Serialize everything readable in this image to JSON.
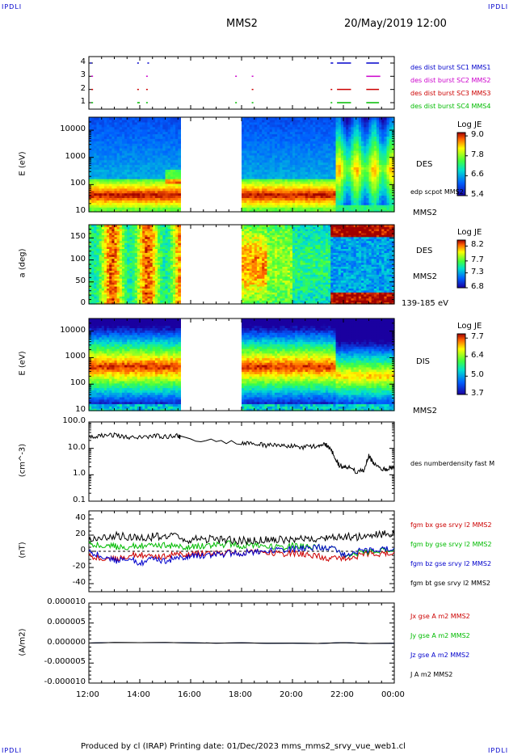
{
  "corner_tag": "IPDLI",
  "header": {
    "spacecraft": "MMS2",
    "datetime": "20/May/2019 12:00"
  },
  "footer": {
    "text": "Produced by cl (IRAP)    Printing date: 01/Dec/2023    mms_mms2_srvy_vue_web1.cl"
  },
  "chart_data": [
    {
      "type": "timeline",
      "name": "burst-availability",
      "yticks": [
        "1",
        "2",
        "3",
        "4"
      ],
      "legend": [
        {
          "label": "des dist burst SC1 MMS1",
          "color": "#0000cc"
        },
        {
          "label": "des dist burst SC2 MMS2",
          "color": "#cc00cc"
        },
        {
          "label": "des dist burst SC3 MMS3",
          "color": "#cc0000"
        },
        {
          "label": "des dist burst SC4 MMS4",
          "color": "#00bb00"
        }
      ],
      "segments": [
        {
          "level": 4,
          "start": 12.05,
          "end": 12.1
        },
        {
          "level": 4,
          "start": 13.9,
          "end": 13.95
        },
        {
          "level": 4,
          "start": 14.3,
          "end": 14.35
        },
        {
          "level": 4,
          "start": 21.5,
          "end": 21.6
        },
        {
          "level": 4,
          "start": 21.75,
          "end": 22.3
        },
        {
          "level": 4,
          "start": 22.9,
          "end": 23.4
        },
        {
          "level": 3,
          "start": 12.1,
          "end": 12.15
        },
        {
          "level": 3,
          "start": 14.25,
          "end": 14.3
        },
        {
          "level": 3,
          "start": 17.75,
          "end": 17.8
        },
        {
          "level": 3,
          "start": 18.4,
          "end": 18.45
        },
        {
          "level": 3,
          "start": 22.9,
          "end": 23.45
        },
        {
          "level": 2,
          "start": 12.1,
          "end": 12.15
        },
        {
          "level": 2,
          "start": 13.9,
          "end": 13.95
        },
        {
          "level": 2,
          "start": 14.25,
          "end": 14.3
        },
        {
          "level": 2,
          "start": 18.4,
          "end": 18.45
        },
        {
          "level": 2,
          "start": 21.5,
          "end": 21.55
        },
        {
          "level": 2,
          "start": 21.75,
          "end": 22.3
        },
        {
          "level": 2,
          "start": 22.9,
          "end": 23.4
        },
        {
          "level": 1,
          "start": 12.1,
          "end": 12.15
        },
        {
          "level": 1,
          "start": 13.9,
          "end": 14.0
        },
        {
          "level": 1,
          "start": 14.25,
          "end": 14.3
        },
        {
          "level": 1,
          "start": 17.75,
          "end": 17.8
        },
        {
          "level": 1,
          "start": 18.4,
          "end": 18.45
        },
        {
          "level": 1,
          "start": 21.5,
          "end": 21.55
        },
        {
          "level": 1,
          "start": 21.75,
          "end": 22.3
        },
        {
          "level": 1,
          "start": 22.9,
          "end": 23.4
        }
      ]
    },
    {
      "type": "heatmap",
      "name": "des-energy-spectrogram",
      "ylabel": "E (eV)",
      "yscale": "log",
      "ylim": [
        10,
        30000
      ],
      "yticks": [
        "10",
        "100",
        "1000",
        "10000"
      ],
      "side_labels": [
        "DES",
        "edp scpot MMS2",
        "MMS2"
      ],
      "colorbar": {
        "title": "Log JE",
        "ticks": [
          "9.0",
          "7.8",
          "6.6",
          "5.4"
        ],
        "range": [
          5.4,
          9.2
        ]
      },
      "data_gap": [
        15.6,
        18.0
      ]
    },
    {
      "type": "heatmap",
      "name": "des-pitch-angle",
      "ylabel": "a (deg)",
      "ylim": [
        0,
        180
      ],
      "yticks": [
        "0",
        "50",
        "100",
        "150"
      ],
      "side_labels": [
        "DES",
        "MMS2",
        "139-185 eV"
      ],
      "colorbar": {
        "title": "Log JE",
        "ticks": [
          "8.2",
          "7.7",
          "7.3",
          "6.8"
        ],
        "range": [
          6.8,
          8.4
        ]
      },
      "data_gap": [
        15.6,
        18.0
      ]
    },
    {
      "type": "heatmap",
      "name": "dis-energy-spectrogram",
      "ylabel": "E (eV)",
      "yscale": "log",
      "ylim": [
        10,
        30000
      ],
      "yticks": [
        "10",
        "100",
        "1000",
        "10000"
      ],
      "side_labels": [
        "DIS",
        "MMS2"
      ],
      "colorbar": {
        "title": "Log JE",
        "ticks": [
          "7.7",
          "6.4",
          "5.0",
          "3.7"
        ],
        "range": [
          3.7,
          8.0
        ]
      },
      "data_gap": [
        15.6,
        18.0
      ]
    },
    {
      "type": "line",
      "name": "density",
      "ylabel": "(cm^-3)",
      "yscale": "log",
      "ylim": [
        0.1,
        100
      ],
      "yticks": [
        "0.1",
        "1.0",
        "10.0",
        "100.0"
      ],
      "series": [
        {
          "name": "des numberdensity fast M",
          "color": "#000000",
          "x": [
            12.0,
            12.5,
            13.0,
            13.5,
            14.0,
            14.5,
            15.0,
            15.5,
            15.6,
            18.0,
            18.5,
            19.0,
            19.5,
            20.0,
            20.5,
            21.0,
            21.3,
            21.5,
            21.7,
            21.8,
            22.0,
            22.2,
            22.5,
            22.8,
            23.0,
            23.2,
            23.5,
            23.8,
            24.0
          ],
          "y": [
            28,
            30,
            33,
            27,
            26,
            29,
            28,
            30,
            25,
            15,
            15,
            13,
            13,
            12,
            11,
            12,
            14,
            10,
            4,
            2.5,
            1.8,
            2.0,
            1.3,
            1.5,
            5,
            2.5,
            1.5,
            1.8,
            2.0
          ]
        }
      ]
    },
    {
      "type": "line",
      "name": "magnetic-field",
      "ylabel": "(nT)",
      "ylim": [
        -50,
        50
      ],
      "yticks": [
        "-40",
        "-20",
        "0",
        "20",
        "40"
      ],
      "series": [
        {
          "name": "fgm bx gse srvy l2 MMS2",
          "color": "#cc0000",
          "x": [
            12.0,
            12.5,
            13.0,
            13.5,
            14.0,
            14.5,
            15.0,
            15.5,
            16.0,
            16.5,
            17.0,
            17.5,
            18.0,
            18.5,
            19.0,
            19.5,
            20.0,
            20.5,
            21.0,
            21.5,
            22.0,
            22.5,
            23.0,
            23.5,
            24.0
          ],
          "y": [
            -5,
            -8,
            -10,
            -6,
            -4,
            -8,
            -6,
            -3,
            -4,
            -2,
            -3,
            -2,
            -2,
            0,
            -2,
            -3,
            -2,
            -4,
            -6,
            -10,
            -8,
            -6,
            -2,
            -3,
            -1
          ]
        },
        {
          "name": "fgm by gse srvy l2 MMS2",
          "color": "#00bb00",
          "x": [
            12.0,
            12.5,
            13.0,
            13.5,
            14.0,
            14.5,
            15.0,
            15.5,
            16.0,
            16.5,
            17.0,
            17.5,
            18.0,
            18.5,
            19.0,
            19.5,
            20.0,
            20.5,
            21.0,
            21.5,
            22.0,
            22.5,
            23.0,
            23.5,
            24.0
          ],
          "y": [
            10,
            8,
            6,
            5,
            7,
            6,
            8,
            6,
            5,
            7,
            8,
            9,
            7,
            8,
            6,
            5,
            7,
            6,
            5,
            4,
            -4,
            -2,
            0,
            2,
            3
          ]
        },
        {
          "name": "fgm bz gse srvy l2 MMS2",
          "color": "#0000cc",
          "x": [
            12.0,
            12.5,
            13.0,
            13.5,
            14.0,
            14.5,
            15.0,
            15.5,
            16.0,
            16.5,
            17.0,
            17.5,
            18.0,
            18.5,
            19.0,
            19.5,
            20.0,
            20.5,
            21.0,
            21.5,
            22.0,
            22.5,
            23.0,
            23.5,
            24.0
          ],
          "y": [
            0,
            -5,
            -12,
            -8,
            -15,
            -10,
            -12,
            -8,
            -6,
            -5,
            -4,
            -3,
            -2,
            -1,
            0,
            2,
            3,
            4,
            5,
            4,
            -4,
            0,
            2,
            3,
            4
          ]
        },
        {
          "name": "fgm bt gse srvy l2 MMS2",
          "color": "#000000",
          "x": [
            12.0,
            12.5,
            13.0,
            13.5,
            14.0,
            14.5,
            15.0,
            15.5,
            16.0,
            16.5,
            17.0,
            17.5,
            18.0,
            18.5,
            19.0,
            19.5,
            20.0,
            20.5,
            21.0,
            21.5,
            22.0,
            22.5,
            23.0,
            23.5,
            24.0
          ],
          "y": [
            15,
            16,
            20,
            18,
            17,
            18,
            19,
            17,
            14,
            15,
            15,
            14,
            13,
            13,
            14,
            14,
            15,
            15,
            16,
            17,
            18,
            18,
            19,
            21,
            22
          ]
        }
      ]
    },
    {
      "type": "line",
      "name": "current-density",
      "ylabel": "(A/m2)",
      "ylim": [
        -0.0001,
        0.0001
      ],
      "yticks": [
        "-0.000010",
        "-0.000005",
        "0.000000",
        "0.000005",
        "0.000010"
      ],
      "series": [
        {
          "name": "Jx gse A m2 MMS2",
          "color": "#cc0000",
          "x": [
            12.0,
            24.0
          ],
          "y": [
            0,
            0
          ]
        },
        {
          "name": "Jy gse A m2 MMS2",
          "color": "#00bb00",
          "x": [
            12.0,
            24.0
          ],
          "y": [
            0,
            0
          ]
        },
        {
          "name": "Jz gse A m2 MMS2",
          "color": "#0000cc",
          "x": [
            12.0,
            24.0
          ],
          "y": [
            0,
            0
          ]
        },
        {
          "name": "J A m2 MMS2",
          "color": "#000000",
          "x": [
            12.0,
            24.0
          ],
          "y": [
            0,
            0
          ]
        }
      ]
    }
  ],
  "time_axis": {
    "range": [
      12.0,
      24.0
    ],
    "ticks": [
      "12:00",
      "14:00",
      "16:00",
      "18:00",
      "20:00",
      "22:00",
      "00:00"
    ]
  }
}
